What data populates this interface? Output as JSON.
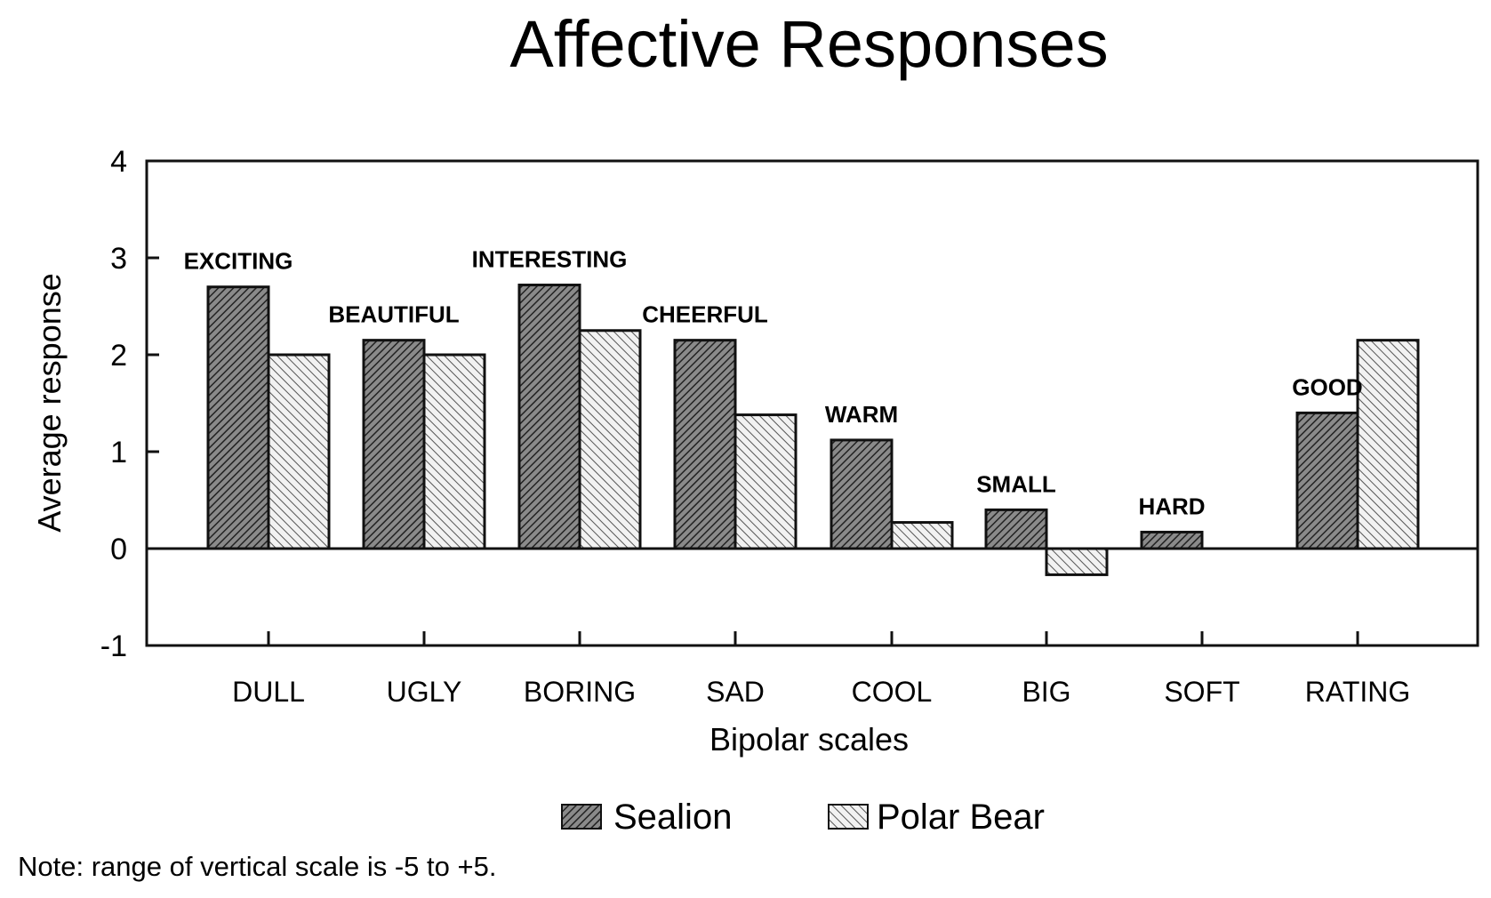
{
  "chart_data": {
    "type": "bar",
    "title": "Affective Responses",
    "xlabel": "Bipolar scales",
    "ylabel": "Average response",
    "ylim": [
      -1,
      4
    ],
    "yticks": [
      "4",
      "3",
      "2",
      "1",
      "0",
      "-1"
    ],
    "grid": false,
    "legend_placement": "bottom",
    "categories": [
      "DULL",
      "UGLY",
      "BORING",
      "SAD",
      "COOL",
      "BIG",
      "SOFT",
      "RATING"
    ],
    "pole_labels": [
      "EXCITING",
      "BEAUTIFUL",
      "INTERESTING",
      "CHEERFUL",
      "WARM",
      "SMALL",
      "HARD",
      "GOOD"
    ],
    "series": [
      {
        "name": "Sealion",
        "values": [
          2.7,
          2.15,
          2.72,
          2.15,
          1.12,
          0.4,
          0.17,
          1.4
        ],
        "pattern": "dense-hatch",
        "color": "#555555"
      },
      {
        "name": "Polar Bear",
        "values": [
          2.0,
          2.0,
          2.25,
          1.38,
          0.27,
          -0.27,
          0.0,
          2.15
        ],
        "pattern": "light-hatch",
        "color": "#bbbbbb"
      }
    ],
    "note": "Note: range of vertical scale is -5 to +5."
  }
}
